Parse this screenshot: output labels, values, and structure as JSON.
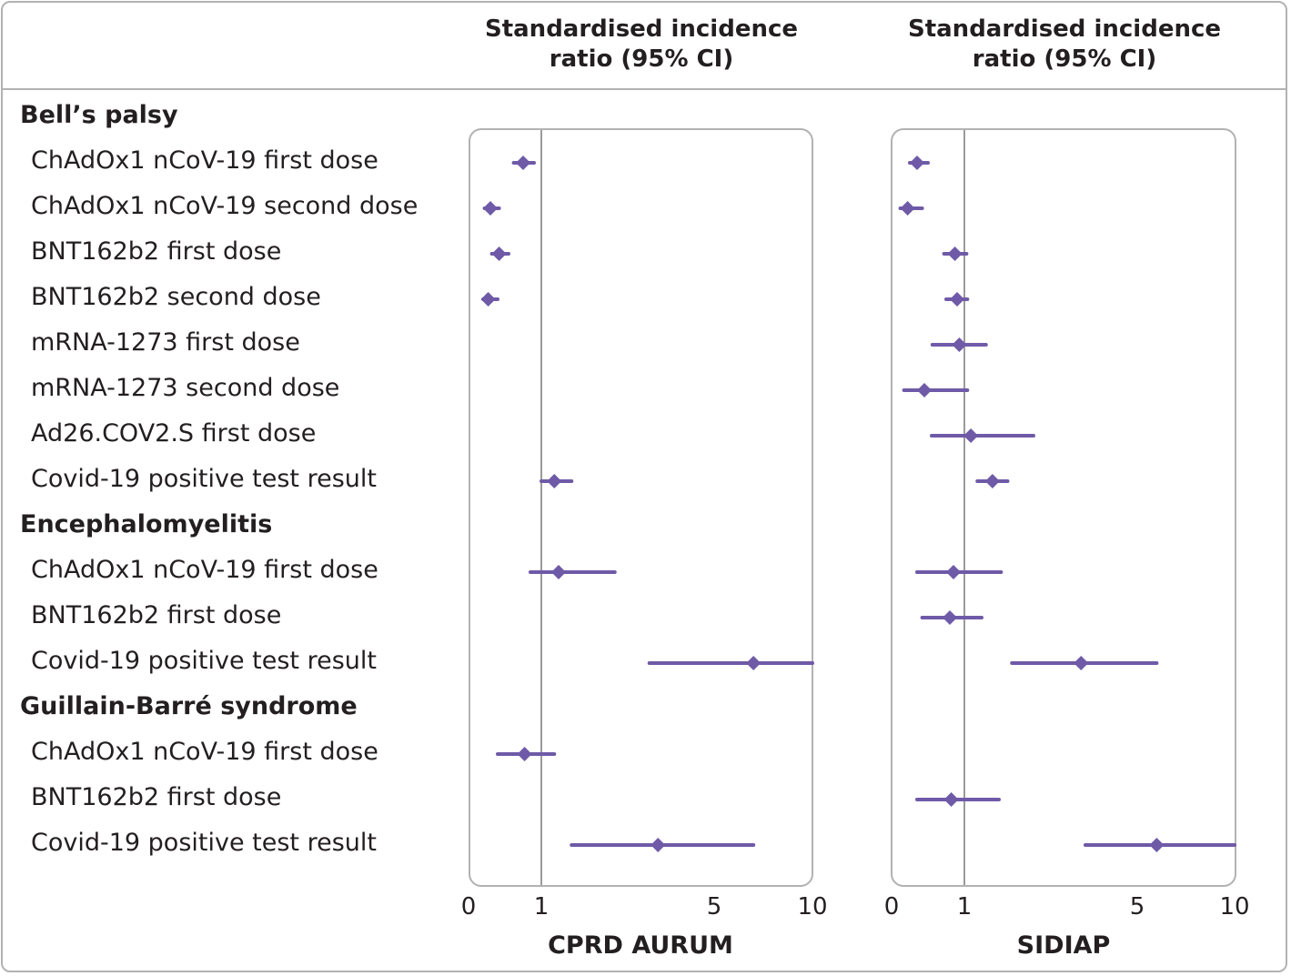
{
  "colors": {
    "marker": "#6f5aa7",
    "reference_line": "#9a9a9a",
    "frame": "#b2b2b2",
    "text": "#231f20"
  },
  "header": {
    "left": {
      "line1": "Standardised incidence",
      "line2": "ratio (95% CI)"
    },
    "right": {
      "line1": "Standardised incidence",
      "line2": "ratio (95% CI)"
    }
  },
  "rows": [
    {
      "type": "group",
      "label": "Bell’s palsy"
    },
    {
      "type": "item",
      "label": "ChAdOx1 nCoV-19 first dose"
    },
    {
      "type": "item",
      "label": "ChAdOx1 nCoV-19 second dose"
    },
    {
      "type": "item",
      "label": "BNT162b2 first dose"
    },
    {
      "type": "item",
      "label": "BNT162b2 second dose"
    },
    {
      "type": "item",
      "label": "mRNA-1273 first dose"
    },
    {
      "type": "item",
      "label": "mRNA-1273 second dose"
    },
    {
      "type": "item",
      "label": "Ad26.COV2.S first dose"
    },
    {
      "type": "item",
      "label": "Covid-19 positive test result"
    },
    {
      "type": "group",
      "label": "Encephalomyelitis"
    },
    {
      "type": "item",
      "label": "ChAdOx1 nCoV-19 first dose"
    },
    {
      "type": "item",
      "label": "BNT162b2 first dose"
    },
    {
      "type": "item",
      "label": "Covid-19 positive test result"
    },
    {
      "type": "group",
      "label": "Guillain-Barré syndrome"
    },
    {
      "type": "item",
      "label": "ChAdOx1 nCoV-19 first dose"
    },
    {
      "type": "item",
      "label": "BNT162b2 first dose"
    },
    {
      "type": "item",
      "label": "Covid-19 positive test result"
    }
  ],
  "chart_data": [
    {
      "type": "forest",
      "title": "CPRD AURUM",
      "xlabel": "Standardised incidence ratio (95% CI)",
      "x_ticks": [
        "0",
        "1",
        "5",
        "10"
      ],
      "reference_value": 1,
      "points": [
        {
          "row": 1,
          "est": 0.75,
          "lo": 0.62,
          "hi": 0.9
        },
        {
          "row": 2,
          "est": 0.3,
          "lo": 0.22,
          "hi": 0.42
        },
        {
          "row": 3,
          "est": 0.42,
          "lo": 0.32,
          "hi": 0.55
        },
        {
          "row": 4,
          "est": 0.27,
          "lo": 0.2,
          "hi": 0.4
        },
        {
          "row": 5,
          "est": null
        },
        {
          "row": 6,
          "est": null
        },
        {
          "row": 7,
          "est": null
        },
        {
          "row": 8,
          "est": 1.3,
          "lo": 1.0,
          "hi": 1.7
        },
        {
          "row": 10,
          "est": 1.4,
          "lo": 0.85,
          "hi": 2.7
        },
        {
          "row": 11,
          "est": null
        },
        {
          "row": 12,
          "est": 7.0,
          "lo": 3.5,
          "hi": 10.0
        },
        {
          "row": 14,
          "est": 0.77,
          "lo": 0.4,
          "hi": 1.3
        },
        {
          "row": 15,
          "est": null
        },
        {
          "row": 16,
          "est": 3.7,
          "lo": 1.7,
          "hi": 7.0
        }
      ]
    },
    {
      "type": "forest",
      "title": "SIDIAP",
      "xlabel": "Standardised incidence ratio (95% CI)",
      "x_ticks": [
        "0",
        "1",
        "5",
        "10"
      ],
      "reference_value": 1,
      "points": [
        {
          "row": 1,
          "est": 0.35,
          "lo": 0.25,
          "hi": 0.5
        },
        {
          "row": 2,
          "est": 0.22,
          "lo": 0.12,
          "hi": 0.42
        },
        {
          "row": 3,
          "est": 0.87,
          "lo": 0.72,
          "hi": 1.05
        },
        {
          "row": 4,
          "est": 0.9,
          "lo": 0.75,
          "hi": 1.07
        },
        {
          "row": 5,
          "est": 0.93,
          "lo": 0.56,
          "hi": 1.5
        },
        {
          "row": 6,
          "est": 0.45,
          "lo": 0.17,
          "hi": 1.07
        },
        {
          "row": 7,
          "est": 1.15,
          "lo": 0.55,
          "hi": 2.6
        },
        {
          "row": 8,
          "est": 1.65,
          "lo": 1.3,
          "hi": 2.0
        },
        {
          "row": 10,
          "est": 0.85,
          "lo": 0.35,
          "hi": 1.85
        },
        {
          "row": 11,
          "est": 0.8,
          "lo": 0.42,
          "hi": 1.4
        },
        {
          "row": 12,
          "est": 3.7,
          "lo": 2.1,
          "hi": 6.0
        },
        {
          "row": 14,
          "est": null
        },
        {
          "row": 15,
          "est": 0.82,
          "lo": 0.35,
          "hi": 1.8
        },
        {
          "row": 16,
          "est": 6.0,
          "lo": 3.8,
          "hi": 10.0
        }
      ]
    }
  ]
}
